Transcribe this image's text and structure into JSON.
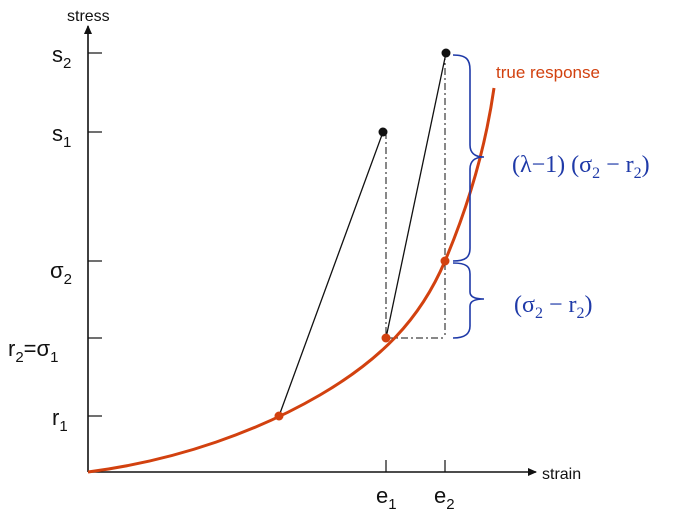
{
  "axes": {
    "x_label": "strain",
    "y_label": "stress"
  },
  "curve_label": "true response",
  "y_ticks": {
    "s2": {
      "main": "s",
      "sub": "2"
    },
    "s1": {
      "main": "s",
      "sub": "1"
    },
    "sigma2": {
      "main": "σ",
      "sub": "2"
    },
    "r2_sigma1": {
      "main": "r",
      "sub": "2",
      "mid": "=σ",
      "sub2": "1"
    },
    "r1": {
      "main": "r",
      "sub": "1"
    }
  },
  "x_ticks": {
    "e1": {
      "main": "e",
      "sub": "1"
    },
    "e2": {
      "main": "e",
      "sub": "2"
    }
  },
  "brackets": {
    "upper": {
      "text1": "(λ−1) (σ",
      "sub1": "2",
      "text2": " − r",
      "sub2": "2",
      "text3": ")"
    },
    "lower": {
      "text1": "(σ",
      "sub1": "2",
      "text2": " − r",
      "sub2": "2",
      "text3": ")"
    }
  },
  "colors": {
    "curve": "#d2410f",
    "annotation": "#1f3aa8",
    "line": "#111111"
  }
}
